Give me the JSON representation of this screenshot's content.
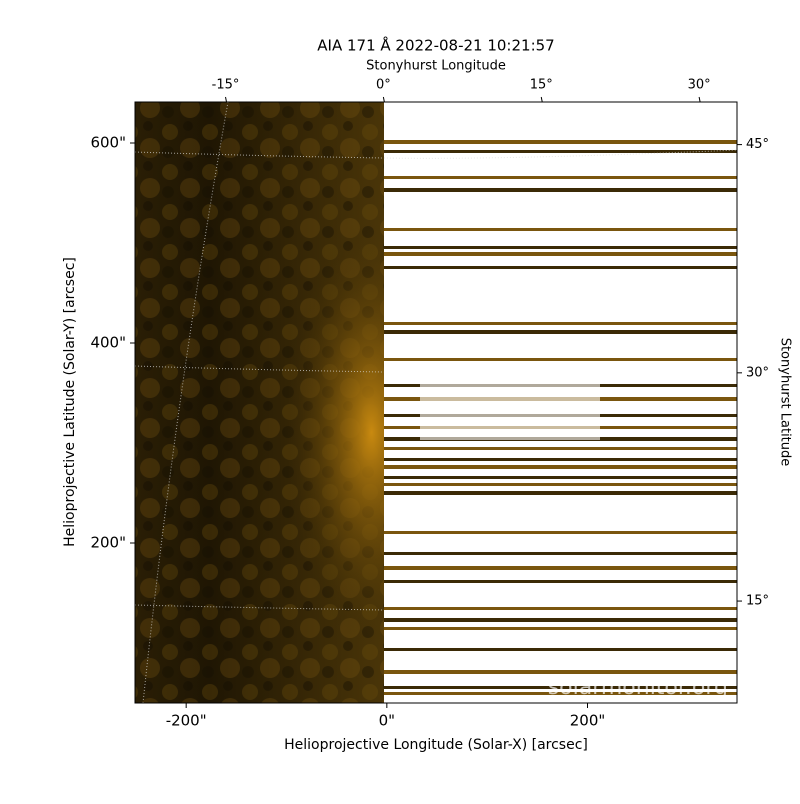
{
  "chart_data": {
    "type": "image",
    "title": "AIA 171 Å 2022-08-21 10:21:57",
    "xlabel": "Helioprojective Longitude (Solar-X) [arcsec]",
    "ylabel": "Helioprojective Latitude (Solar-Y) [arcsec]",
    "x2label": "Stonyhurst Longitude",
    "y2label": "Stonyhurst Latitude",
    "annotation": "solarmonitor.org",
    "xlim": [
      -251,
      349
    ],
    "xticks": [
      {
        "value": -200,
        "label": "-200\""
      },
      {
        "value": 0,
        "label": "0\""
      },
      {
        "value": 200,
        "label": "200\""
      }
    ],
    "ylim": [
      40,
      641
    ],
    "yticks": [
      {
        "value": 200,
        "label": "200\""
      },
      {
        "value": 400,
        "label": "400\""
      },
      {
        "value": 600,
        "label": "600\""
      }
    ],
    "x2lim": [
      -23.6,
      33.6
    ],
    "x2ticks": [
      {
        "value": -15,
        "label": "-15°"
      },
      {
        "value": 0,
        "label": "0°"
      },
      {
        "value": 15,
        "label": "15°"
      },
      {
        "value": 30,
        "label": "30°"
      }
    ],
    "y2lim": [
      8.3,
      47.8
    ],
    "y2ticks": [
      {
        "value": 15,
        "label": "15°"
      },
      {
        "value": 30,
        "label": "30°"
      },
      {
        "value": 45,
        "label": "45°"
      }
    ]
  }
}
